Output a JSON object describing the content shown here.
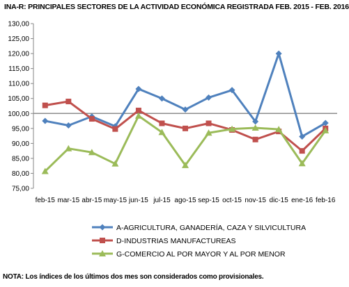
{
  "title": "INA-R: PRINCIPALES SECTORES DE LA ACTIVIDAD ECONÓMICA REGISTRADA FEB. 2015 - FEB. 2016",
  "note": "NOTA: Los índices de los últimos dos mes son considerados como provisionales.",
  "chart_data": {
    "type": "line",
    "categories": [
      "feb-15",
      "mar-15",
      "abr-15",
      "may-15",
      "jun-15",
      "jul-15",
      "ago-15",
      "sep-15",
      "oct-15",
      "nov-15",
      "dic-15",
      "ene-16",
      "feb-16"
    ],
    "ylim": [
      75,
      130
    ],
    "yticks": [
      "130,00",
      "125,00",
      "120,00",
      "115,00",
      "110,00",
      "105,00",
      "100,00",
      "95,00",
      "90,00",
      "85,00",
      "80,00",
      "75,00"
    ],
    "reference_line": 100,
    "grid": false,
    "legend_position": "bottom",
    "series": [
      {
        "name": "A-AGRICULTURA, GANADERÍA, CAZA Y SILVICULTURA",
        "color": "#4F81BD",
        "marker": "diamond",
        "values": [
          97.5,
          96.0,
          99.0,
          95.7,
          108.2,
          105.0,
          101.3,
          105.3,
          107.8,
          97.3,
          120.0,
          92.3,
          96.8
        ]
      },
      {
        "name": "D-INDUSTRIAS MANUFACTUREAS",
        "color": "#C0504D",
        "marker": "square",
        "values": [
          102.7,
          104.0,
          98.2,
          94.8,
          101.0,
          96.7,
          95.0,
          96.7,
          94.5,
          91.3,
          94.0,
          87.5,
          95.0
        ]
      },
      {
        "name": "G-COMERCIO AL POR MAYOR Y AL POR MENOR",
        "color": "#9BBB59",
        "marker": "triangle",
        "values": [
          80.7,
          88.3,
          87.0,
          83.2,
          99.2,
          93.7,
          82.7,
          93.5,
          94.8,
          95.2,
          94.7,
          83.3,
          94.3
        ]
      }
    ]
  }
}
